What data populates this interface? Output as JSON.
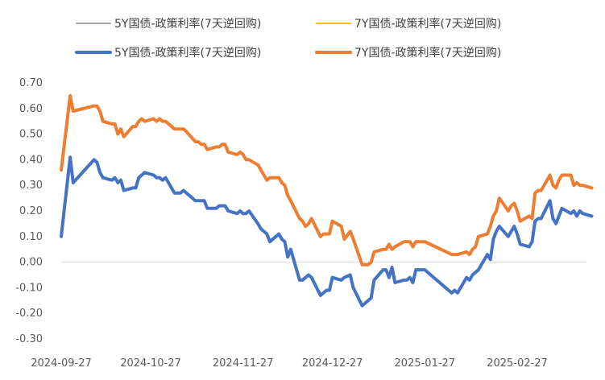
{
  "chart_data": {
    "type": "line",
    "title": "",
    "xlabel": "",
    "ylabel": "",
    "ylim": [
      -0.3,
      0.7
    ],
    "y_ticks": [
      "0.70",
      "0.60",
      "0.50",
      "0.40",
      "0.30",
      "0.20",
      "0.10",
      "0.00",
      "-0.10",
      "-0.20",
      "-0.30"
    ],
    "x_tick_labels": [
      "2024-09-27",
      "2024-10-27",
      "2024-11-27",
      "2024-12-27",
      "2025-01-27",
      "2025-02-27"
    ],
    "grid": false,
    "legend_position": "top",
    "legend": [
      {
        "name": "5Y国债-政策利率(7天逆回购)",
        "color": "#a5a5a5",
        "width": 2
      },
      {
        "name": "7Y国债-政策利率(7天逆回购)",
        "color": "#ffc000",
        "width": 2
      },
      {
        "name": "5Y国债-政策利率(7天逆回购)",
        "color": "#4472c4",
        "width": 4
      },
      {
        "name": "7Y国债-政策利率(7天逆回购)",
        "color": "#ed7d31",
        "width": 4
      }
    ],
    "series": [
      {
        "name": "5Y国债-政策利率(7天逆回购)",
        "color": "#4472c4",
        "points": [
          [
            "2024-09-27",
            0.1
          ],
          [
            "2024-09-30",
            0.41
          ],
          [
            "2024-10-01",
            0.31
          ],
          [
            "2024-10-08",
            0.4
          ],
          [
            "2024-10-09",
            0.39
          ],
          [
            "2024-10-10",
            0.35
          ],
          [
            "2024-10-11",
            0.33
          ],
          [
            "2024-10-14",
            0.32
          ],
          [
            "2024-10-15",
            0.33
          ],
          [
            "2024-10-16",
            0.31
          ],
          [
            "2024-10-17",
            0.32
          ],
          [
            "2024-10-18",
            0.28
          ],
          [
            "2024-10-21",
            0.29
          ],
          [
            "2024-10-22",
            0.29
          ],
          [
            "2024-10-23",
            0.33
          ],
          [
            "2024-10-24",
            0.34
          ],
          [
            "2024-10-25",
            0.35
          ],
          [
            "2024-10-28",
            0.34
          ],
          [
            "2024-10-29",
            0.33
          ],
          [
            "2024-10-30",
            0.33
          ],
          [
            "2024-10-31",
            0.32
          ],
          [
            "2024-11-01",
            0.33
          ],
          [
            "2024-11-04",
            0.27
          ],
          [
            "2024-11-05",
            0.27
          ],
          [
            "2024-11-06",
            0.27
          ],
          [
            "2024-11-07",
            0.28
          ],
          [
            "2024-11-08",
            0.27
          ],
          [
            "2024-11-11",
            0.24
          ],
          [
            "2024-11-12",
            0.24
          ],
          [
            "2024-11-13",
            0.24
          ],
          [
            "2024-11-14",
            0.24
          ],
          [
            "2024-11-15",
            0.21
          ],
          [
            "2024-11-18",
            0.21
          ],
          [
            "2024-11-19",
            0.22
          ],
          [
            "2024-11-20",
            0.22
          ],
          [
            "2024-11-21",
            0.22
          ],
          [
            "2024-11-22",
            0.2
          ],
          [
            "2024-11-25",
            0.19
          ],
          [
            "2024-11-26",
            0.2
          ],
          [
            "2024-11-27",
            0.19
          ],
          [
            "2024-11-28",
            0.19
          ],
          [
            "2024-11-29",
            0.2
          ],
          [
            "2024-12-02",
            0.15
          ],
          [
            "2024-12-03",
            0.13
          ],
          [
            "2024-12-04",
            0.12
          ],
          [
            "2024-12-05",
            0.11
          ],
          [
            "2024-12-06",
            0.08
          ],
          [
            "2024-12-09",
            0.11
          ],
          [
            "2024-12-10",
            0.09
          ],
          [
            "2024-12-11",
            0.08
          ],
          [
            "2024-12-12",
            0.02
          ],
          [
            "2024-12-13",
            0.05
          ],
          [
            "2024-12-16",
            -0.07
          ],
          [
            "2024-12-17",
            -0.07
          ],
          [
            "2024-12-18",
            -0.06
          ],
          [
            "2024-12-19",
            -0.05
          ],
          [
            "2024-12-20",
            -0.06
          ],
          [
            "2024-12-23",
            -0.13
          ],
          [
            "2024-12-24",
            -0.12
          ],
          [
            "2024-12-25",
            -0.11
          ],
          [
            "2024-12-26",
            -0.11
          ],
          [
            "2024-12-27",
            -0.06
          ],
          [
            "2024-12-30",
            -0.07
          ],
          [
            "2024-12-31",
            -0.06
          ],
          [
            "2025-01-02",
            -0.05
          ],
          [
            "2025-01-03",
            -0.1
          ],
          [
            "2025-01-06",
            -0.17
          ],
          [
            "2025-01-07",
            -0.16
          ],
          [
            "2025-01-08",
            -0.15
          ],
          [
            "2025-01-09",
            -0.14
          ],
          [
            "2025-01-10",
            -0.07
          ],
          [
            "2025-01-13",
            -0.03
          ],
          [
            "2025-01-14",
            -0.03
          ],
          [
            "2025-01-15",
            -0.06
          ],
          [
            "2025-01-16",
            -0.02
          ],
          [
            "2025-01-17",
            -0.08
          ],
          [
            "2025-01-20",
            -0.07
          ],
          [
            "2025-01-21",
            -0.07
          ],
          [
            "2025-01-22",
            -0.06
          ],
          [
            "2025-01-23",
            -0.08
          ],
          [
            "2025-01-24",
            -0.03
          ],
          [
            "2025-01-27",
            -0.03
          ],
          [
            "2025-02-05",
            -0.12
          ],
          [
            "2025-02-06",
            -0.11
          ],
          [
            "2025-02-07",
            -0.12
          ],
          [
            "2025-02-10",
            -0.06
          ],
          [
            "2025-02-11",
            -0.07
          ],
          [
            "2025-02-12",
            -0.05
          ],
          [
            "2025-02-13",
            -0.04
          ],
          [
            "2025-02-14",
            -0.03
          ],
          [
            "2025-02-17",
            0.03
          ],
          [
            "2025-02-18",
            0.01
          ],
          [
            "2025-02-19",
            0.09
          ],
          [
            "2025-02-20",
            0.12
          ],
          [
            "2025-02-21",
            0.14
          ],
          [
            "2025-02-24",
            0.1
          ],
          [
            "2025-02-25",
            0.12
          ],
          [
            "2025-02-26",
            0.14
          ],
          [
            "2025-02-27",
            0.11
          ],
          [
            "2025-02-28",
            0.07
          ],
          [
            "2025-03-03",
            0.06
          ],
          [
            "2025-03-04",
            0.08
          ],
          [
            "2025-03-05",
            0.16
          ],
          [
            "2025-03-06",
            0.17
          ],
          [
            "2025-03-07",
            0.17
          ],
          [
            "2025-03-10",
            0.24
          ],
          [
            "2025-03-11",
            0.17
          ],
          [
            "2025-03-12",
            0.15
          ],
          [
            "2025-03-13",
            0.18
          ],
          [
            "2025-03-14",
            0.21
          ],
          [
            "2025-03-17",
            0.19
          ],
          [
            "2025-03-18",
            0.2
          ],
          [
            "2025-03-19",
            0.18
          ],
          [
            "2025-03-20",
            0.2
          ],
          [
            "2025-03-21",
            0.19
          ],
          [
            "2025-03-24",
            0.18
          ]
        ]
      },
      {
        "name": "7Y国债-政策利率(7天逆回购)",
        "color": "#ed7d31",
        "points": [
          [
            "2024-09-27",
            0.36
          ],
          [
            "2024-09-30",
            0.65
          ],
          [
            "2024-10-01",
            0.59
          ],
          [
            "2024-10-08",
            0.61
          ],
          [
            "2024-10-09",
            0.61
          ],
          [
            "2024-10-10",
            0.59
          ],
          [
            "2024-10-11",
            0.55
          ],
          [
            "2024-10-14",
            0.54
          ],
          [
            "2024-10-15",
            0.54
          ],
          [
            "2024-10-16",
            0.5
          ],
          [
            "2024-10-17",
            0.52
          ],
          [
            "2024-10-18",
            0.49
          ],
          [
            "2024-10-21",
            0.53
          ],
          [
            "2024-10-22",
            0.53
          ],
          [
            "2024-10-23",
            0.55
          ],
          [
            "2024-10-24",
            0.56
          ],
          [
            "2024-10-25",
            0.55
          ],
          [
            "2024-10-28",
            0.56
          ],
          [
            "2024-10-29",
            0.55
          ],
          [
            "2024-10-30",
            0.56
          ],
          [
            "2024-10-31",
            0.55
          ],
          [
            "2024-11-01",
            0.55
          ],
          [
            "2024-11-04",
            0.52
          ],
          [
            "2024-11-05",
            0.52
          ],
          [
            "2024-11-06",
            0.52
          ],
          [
            "2024-11-07",
            0.52
          ],
          [
            "2024-11-08",
            0.51
          ],
          [
            "2024-11-11",
            0.47
          ],
          [
            "2024-11-12",
            0.47
          ],
          [
            "2024-11-13",
            0.46
          ],
          [
            "2024-11-14",
            0.46
          ],
          [
            "2024-11-15",
            0.44
          ],
          [
            "2024-11-18",
            0.45
          ],
          [
            "2024-11-19",
            0.45
          ],
          [
            "2024-11-20",
            0.46
          ],
          [
            "2024-11-21",
            0.46
          ],
          [
            "2024-11-22",
            0.43
          ],
          [
            "2024-11-25",
            0.42
          ],
          [
            "2024-11-26",
            0.43
          ],
          [
            "2024-11-27",
            0.42
          ],
          [
            "2024-11-28",
            0.4
          ],
          [
            "2024-11-29",
            0.4
          ],
          [
            "2024-12-02",
            0.38
          ],
          [
            "2024-12-03",
            0.36
          ],
          [
            "2024-12-04",
            0.34
          ],
          [
            "2024-12-05",
            0.32
          ],
          [
            "2024-12-06",
            0.33
          ],
          [
            "2024-12-09",
            0.33
          ],
          [
            "2024-12-10",
            0.31
          ],
          [
            "2024-12-11",
            0.3
          ],
          [
            "2024-12-12",
            0.26
          ],
          [
            "2024-12-13",
            0.24
          ],
          [
            "2024-12-16",
            0.17
          ],
          [
            "2024-12-17",
            0.16
          ],
          [
            "2024-12-18",
            0.14
          ],
          [
            "2024-12-19",
            0.15
          ],
          [
            "2024-12-20",
            0.17
          ],
          [
            "2024-12-23",
            0.1
          ],
          [
            "2024-12-24",
            0.11
          ],
          [
            "2024-12-25",
            0.11
          ],
          [
            "2024-12-26",
            0.11
          ],
          [
            "2024-12-27",
            0.16
          ],
          [
            "2024-12-30",
            0.14
          ],
          [
            "2024-12-31",
            0.09
          ],
          [
            "2025-01-02",
            0.12
          ],
          [
            "2025-01-03",
            0.09
          ],
          [
            "2025-01-06",
            -0.01
          ],
          [
            "2025-01-07",
            -0.01
          ],
          [
            "2025-01-08",
            -0.01
          ],
          [
            "2025-01-09",
            0.0
          ],
          [
            "2025-01-10",
            0.04
          ],
          [
            "2025-01-13",
            0.05
          ],
          [
            "2025-01-14",
            0.05
          ],
          [
            "2025-01-15",
            0.07
          ],
          [
            "2025-01-16",
            0.05
          ],
          [
            "2025-01-17",
            0.06
          ],
          [
            "2025-01-20",
            0.08
          ],
          [
            "2025-01-21",
            0.08
          ],
          [
            "2025-01-22",
            0.08
          ],
          [
            "2025-01-23",
            0.06
          ],
          [
            "2025-01-24",
            0.08
          ],
          [
            "2025-01-27",
            0.08
          ],
          [
            "2025-02-05",
            0.03
          ],
          [
            "2025-02-06",
            0.03
          ],
          [
            "2025-02-07",
            0.03
          ],
          [
            "2025-02-10",
            0.04
          ],
          [
            "2025-02-11",
            0.03
          ],
          [
            "2025-02-12",
            0.05
          ],
          [
            "2025-02-13",
            0.06
          ],
          [
            "2025-02-14",
            0.1
          ],
          [
            "2025-02-17",
            0.11
          ],
          [
            "2025-02-18",
            0.14
          ],
          [
            "2025-02-19",
            0.18
          ],
          [
            "2025-02-20",
            0.2
          ],
          [
            "2025-02-21",
            0.25
          ],
          [
            "2025-02-24",
            0.2
          ],
          [
            "2025-02-25",
            0.22
          ],
          [
            "2025-02-26",
            0.23
          ],
          [
            "2025-02-27",
            0.2
          ],
          [
            "2025-02-28",
            0.16
          ],
          [
            "2025-03-03",
            0.18
          ],
          [
            "2025-03-04",
            0.17
          ],
          [
            "2025-03-05",
            0.27
          ],
          [
            "2025-03-06",
            0.28
          ],
          [
            "2025-03-07",
            0.28
          ],
          [
            "2025-03-10",
            0.34
          ],
          [
            "2025-03-11",
            0.3
          ],
          [
            "2025-03-12",
            0.29
          ],
          [
            "2025-03-13",
            0.32
          ],
          [
            "2025-03-14",
            0.34
          ],
          [
            "2025-03-17",
            0.34
          ],
          [
            "2025-03-18",
            0.3
          ],
          [
            "2025-03-19",
            0.31
          ],
          [
            "2025-03-20",
            0.3
          ],
          [
            "2025-03-21",
            0.3
          ],
          [
            "2025-03-24",
            0.29
          ]
        ]
      }
    ]
  }
}
